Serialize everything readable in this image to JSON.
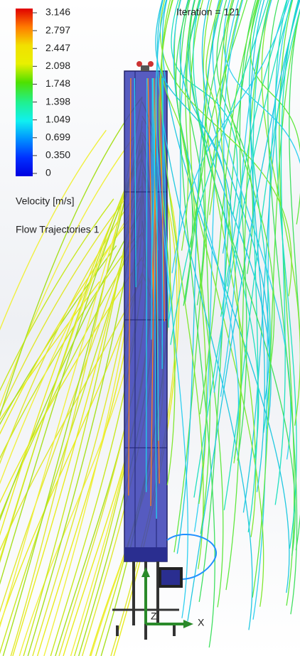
{
  "legend": {
    "ticks": [
      "3.146",
      "2.797",
      "2.447",
      "2.098",
      "1.748",
      "1.398",
      "1.049",
      "0.699",
      "0.350",
      "0"
    ],
    "quantity": "Velocity [m/s]",
    "plot_name": "Flow Trajectories 1"
  },
  "status": {
    "iteration": "Iteration = 121"
  },
  "triad": {
    "z": "Z",
    "x": "X"
  }
}
